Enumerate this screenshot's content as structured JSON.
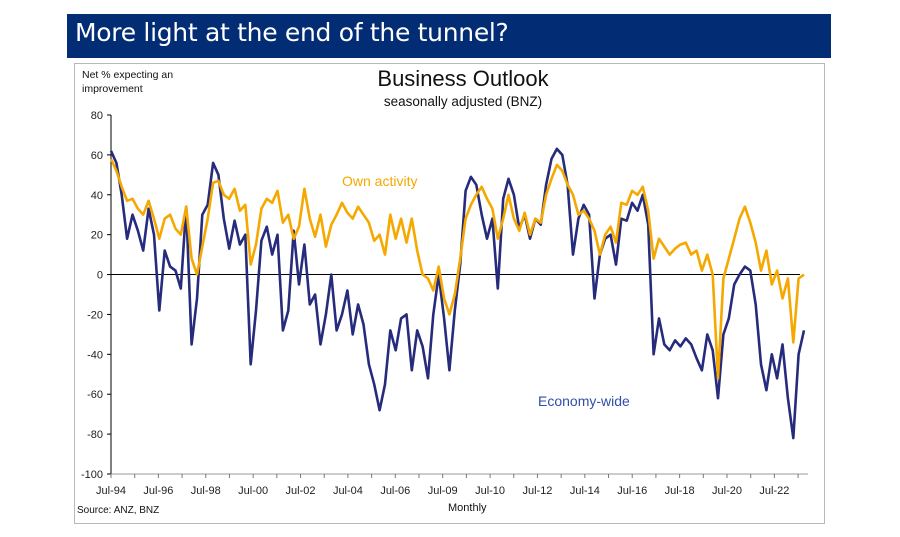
{
  "banner": {
    "title": "More light at the end of the tunnel?"
  },
  "chart_data": {
    "type": "line",
    "title": "Business Outlook",
    "subtitle": "seasonally adjusted (BNZ)",
    "ylabel": "Net % expecting an improvement",
    "xlabel": "Monthly",
    "source": "Source: ANZ, BNZ",
    "ylim": [
      -100,
      80
    ],
    "yticks": [
      80,
      60,
      40,
      20,
      0,
      -20,
      -40,
      -60,
      -80,
      -100
    ],
    "xtick_labels": [
      "Jul-94",
      "Jul-96",
      "Jul-98",
      "Jul-00",
      "Jul-02",
      "Jul-04",
      "Jul-06",
      "Jul-09",
      "Jul-10",
      "Jul-12",
      "Jul-14",
      "Jul-16",
      "Jul-18",
      "Jul-20",
      "Jul-22"
    ],
    "x_start": "Jul-94",
    "x_end": "Oct-23",
    "x_step": "quarterly",
    "annotations": [
      {
        "text": "Own activity",
        "series": "Own activity",
        "near": "Jul-04, 35"
      },
      {
        "text": "Economy-wide",
        "series": "Economy-wide",
        "near": "Jul-14, -62"
      }
    ],
    "grid": false,
    "legend": "inline labels",
    "series": [
      {
        "name": "Own activity",
        "color": "#f5a800",
        "values": [
          58,
          52,
          44,
          37,
          38,
          33,
          30,
          37,
          28,
          18,
          28,
          30,
          23,
          20,
          34,
          8,
          0,
          14,
          28,
          46,
          47,
          40,
          38,
          43,
          32,
          35,
          5,
          15,
          33,
          38,
          36,
          42,
          26,
          30,
          18,
          24,
          43,
          28,
          19,
          30,
          14,
          25,
          30,
          36,
          31,
          28,
          34,
          30,
          26,
          17,
          20,
          10,
          30,
          18,
          28,
          16,
          28,
          12,
          0,
          -2,
          -8,
          4,
          -12,
          -20,
          -10,
          8,
          28,
          35,
          40,
          44,
          38,
          33,
          18,
          28,
          40,
          28,
          22,
          31,
          20,
          28,
          26,
          40,
          48,
          55,
          52,
          45,
          40,
          30,
          32,
          28,
          22,
          10,
          20,
          24,
          16,
          36,
          35,
          42,
          40,
          44,
          32,
          8,
          18,
          14,
          10,
          13,
          15,
          16,
          10,
          12,
          2,
          10,
          0,
          -52,
          -2,
          8,
          18,
          28,
          34,
          26,
          16,
          2,
          12,
          -5,
          2,
          -12,
          -2,
          -34,
          -2,
          0
        ]
      },
      {
        "name": "Economy-wide",
        "color": "#262b7c",
        "values": [
          62,
          56,
          40,
          18,
          30,
          22,
          12,
          33,
          20,
          -18,
          12,
          4,
          2,
          -7,
          34,
          -35,
          -12,
          30,
          35,
          56,
          50,
          28,
          13,
          27,
          15,
          20,
          -45,
          -18,
          17,
          24,
          10,
          20,
          -28,
          -18,
          22,
          -5,
          15,
          -15,
          -10,
          -35,
          -20,
          0,
          -28,
          -20,
          -8,
          -30,
          -15,
          -25,
          -45,
          -55,
          -68,
          -55,
          -28,
          -38,
          -22,
          -20,
          -48,
          -28,
          -36,
          -52,
          -20,
          0,
          -22,
          -48,
          -18,
          5,
          42,
          49,
          45,
          30,
          18,
          28,
          -7,
          38,
          48,
          40,
          23,
          30,
          18,
          28,
          25,
          45,
          58,
          63,
          60,
          45,
          10,
          28,
          35,
          30,
          -12,
          10,
          18,
          20,
          5,
          28,
          27,
          36,
          32,
          40,
          25,
          -40,
          -22,
          -35,
          -38,
          -33,
          -36,
          -32,
          -35,
          -42,
          -48,
          -30,
          -38,
          -62,
          -30,
          -22,
          -5,
          0,
          4,
          2,
          -15,
          -45,
          -58,
          -40,
          -52,
          -35,
          -62,
          -82,
          -40,
          -28
        ]
      }
    ]
  }
}
